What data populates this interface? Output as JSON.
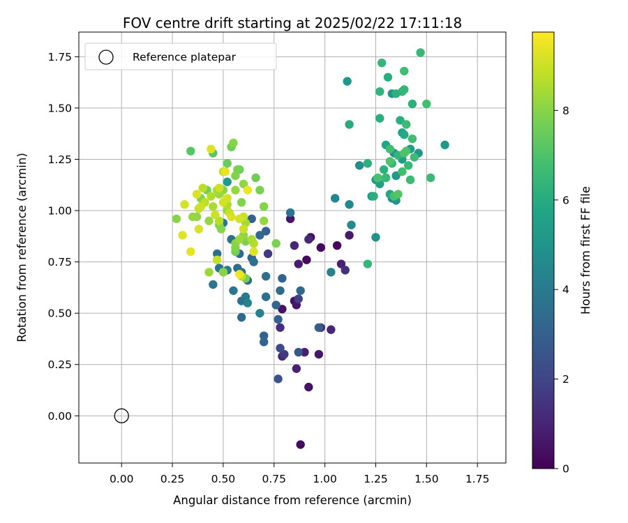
{
  "chart_data": {
    "type": "scatter",
    "title": "FOV centre drift starting at 2025/02/22 17:11:18",
    "xlabel": "Angular distance from reference (arcmin)",
    "ylabel": "Rotation from reference (arcmin)",
    "xlim": [
      -0.21,
      1.89
    ],
    "ylim": [
      -0.23,
      1.87
    ],
    "xticks": [
      0.0,
      0.25,
      0.5,
      0.75,
      1.0,
      1.25,
      1.5,
      1.75
    ],
    "xtick_labels": [
      "0.00",
      "0.25",
      "0.50",
      "0.75",
      "1.00",
      "1.25",
      "1.50",
      "1.75"
    ],
    "yticks": [
      0.0,
      0.25,
      0.5,
      0.75,
      1.0,
      1.25,
      1.5,
      1.75
    ],
    "ytick_labels": [
      "0.00",
      "0.25",
      "0.50",
      "0.75",
      "1.00",
      "1.25",
      "1.50",
      "1.75"
    ],
    "grid": true,
    "colormap": "viridis",
    "legend": {
      "placement": "top-left",
      "entries": [
        {
          "label": "Reference platepar",
          "marker": "open-circle"
        }
      ]
    },
    "reference_point": {
      "x": 0.0,
      "y": 0.0
    },
    "colorbar": {
      "label": "Hours from first FF file",
      "range": [
        0,
        9.75
      ],
      "ticks": [
        0,
        2,
        4,
        6,
        8
      ],
      "tick_labels": [
        "0",
        "2",
        "4",
        "6",
        "8"
      ]
    },
    "points": [
      {
        "x": 0.88,
        "y": -0.14,
        "h": 0.3
      },
      {
        "x": 0.92,
        "y": 0.14,
        "h": 0.5
      },
      {
        "x": 0.86,
        "y": 0.23,
        "h": 0.9
      },
      {
        "x": 0.9,
        "y": 0.31,
        "h": 0.8
      },
      {
        "x": 0.97,
        "y": 0.3,
        "h": 0.6
      },
      {
        "x": 0.79,
        "y": 0.29,
        "h": 1.0
      },
      {
        "x": 0.8,
        "y": 0.3,
        "h": 1.6
      },
      {
        "x": 0.78,
        "y": 0.33,
        "h": 2.2
      },
      {
        "x": 0.77,
        "y": 0.18,
        "h": 2.5
      },
      {
        "x": 0.87,
        "y": 0.31,
        "h": 2.6
      },
      {
        "x": 0.78,
        "y": 0.43,
        "h": 1.3
      },
      {
        "x": 0.79,
        "y": 0.52,
        "h": 0.5
      },
      {
        "x": 0.86,
        "y": 0.54,
        "h": 0.6
      },
      {
        "x": 0.85,
        "y": 0.56,
        "h": 0.4
      },
      {
        "x": 0.87,
        "y": 0.57,
        "h": 1.8
      },
      {
        "x": 0.98,
        "y": 0.43,
        "h": 1.2
      },
      {
        "x": 1.03,
        "y": 0.42,
        "h": 1.0
      },
      {
        "x": 0.97,
        "y": 0.43,
        "h": 2.9
      },
      {
        "x": 0.91,
        "y": 0.76,
        "h": 0.2
      },
      {
        "x": 0.87,
        "y": 0.74,
        "h": 0.8
      },
      {
        "x": 0.98,
        "y": 0.82,
        "h": 0.3
      },
      {
        "x": 0.92,
        "y": 0.86,
        "h": 1.1
      },
      {
        "x": 0.93,
        "y": 0.87,
        "h": 0.4
      },
      {
        "x": 0.85,
        "y": 0.83,
        "h": 1.0
      },
      {
        "x": 0.83,
        "y": 0.96,
        "h": 0.6
      },
      {
        "x": 1.06,
        "y": 0.83,
        "h": 0.2
      },
      {
        "x": 1.08,
        "y": 0.74,
        "h": 0.9
      },
      {
        "x": 1.1,
        "y": 0.71,
        "h": 1.3
      },
      {
        "x": 1.12,
        "y": 0.88,
        "h": 0.7
      },
      {
        "x": 1.03,
        "y": 0.7,
        "h": 4.3
      },
      {
        "x": 0.76,
        "y": 0.54,
        "h": 3.2
      },
      {
        "x": 0.77,
        "y": 0.47,
        "h": 3.0
      },
      {
        "x": 0.78,
        "y": 0.61,
        "h": 3.4
      },
      {
        "x": 0.79,
        "y": 0.67,
        "h": 3.1
      },
      {
        "x": 0.88,
        "y": 0.61,
        "h": 3.3
      },
      {
        "x": 0.7,
        "y": 0.39,
        "h": 3.0
      },
      {
        "x": 0.7,
        "y": 0.36,
        "h": 3.2
      },
      {
        "x": 0.71,
        "y": 0.58,
        "h": 3.6
      },
      {
        "x": 0.71,
        "y": 0.68,
        "h": 3.5
      },
      {
        "x": 0.68,
        "y": 0.5,
        "h": 4.2
      },
      {
        "x": 0.62,
        "y": 0.55,
        "h": 4.3
      },
      {
        "x": 0.61,
        "y": 0.58,
        "h": 3.9
      },
      {
        "x": 0.59,
        "y": 0.56,
        "h": 3.5
      },
      {
        "x": 0.59,
        "y": 0.48,
        "h": 3.4
      },
      {
        "x": 0.55,
        "y": 0.61,
        "h": 3.8
      },
      {
        "x": 0.62,
        "y": 0.66,
        "h": 3.3
      },
      {
        "x": 0.59,
        "y": 0.7,
        "h": 3.6
      },
      {
        "x": 0.57,
        "y": 0.72,
        "h": 3.4
      },
      {
        "x": 0.52,
        "y": 0.71,
        "h": 4.0
      },
      {
        "x": 0.48,
        "y": 0.72,
        "h": 3.7
      },
      {
        "x": 0.45,
        "y": 0.64,
        "h": 3.8
      },
      {
        "x": 0.47,
        "y": 0.79,
        "h": 3.5
      },
      {
        "x": 0.54,
        "y": 0.86,
        "h": 3.6
      },
      {
        "x": 0.58,
        "y": 0.79,
        "h": 3.4
      },
      {
        "x": 0.64,
        "y": 0.77,
        "h": 3.2
      },
      {
        "x": 0.65,
        "y": 0.75,
        "h": 3.5
      },
      {
        "x": 0.72,
        "y": 0.79,
        "h": 1.6
      },
      {
        "x": 0.68,
        "y": 0.88,
        "h": 3.3
      },
      {
        "x": 0.71,
        "y": 0.9,
        "h": 3.0
      },
      {
        "x": 0.64,
        "y": 0.96,
        "h": 3.1
      },
      {
        "x": 0.83,
        "y": 0.99,
        "h": 3.7
      },
      {
        "x": 0.5,
        "y": 0.94,
        "h": 3.9
      },
      {
        "x": 0.52,
        "y": 1.14,
        "h": 5.3
      },
      {
        "x": 1.05,
        "y": 1.06,
        "h": 4.4
      },
      {
        "x": 1.12,
        "y": 1.03,
        "h": 4.5
      },
      {
        "x": 1.13,
        "y": 0.93,
        "h": 4.6
      },
      {
        "x": 1.17,
        "y": 1.22,
        "h": 4.8
      },
      {
        "x": 1.25,
        "y": 0.87,
        "h": 4.9
      },
      {
        "x": 1.21,
        "y": 0.74,
        "h": 6.4
      },
      {
        "x": 1.23,
        "y": 1.07,
        "h": 5.2
      },
      {
        "x": 1.25,
        "y": 1.15,
        "h": 5.3
      },
      {
        "x": 1.27,
        "y": 1.13,
        "h": 5.5
      },
      {
        "x": 1.3,
        "y": 1.16,
        "h": 5.6
      },
      {
        "x": 1.32,
        "y": 1.08,
        "h": 5.8
      },
      {
        "x": 1.35,
        "y": 1.05,
        "h": 5.1
      },
      {
        "x": 1.33,
        "y": 1.06,
        "h": 4.8
      },
      {
        "x": 1.35,
        "y": 1.17,
        "h": 5.2
      },
      {
        "x": 1.34,
        "y": 1.28,
        "h": 5.0
      },
      {
        "x": 1.38,
        "y": 1.25,
        "h": 5.4
      },
      {
        "x": 1.38,
        "y": 1.38,
        "h": 5.6
      },
      {
        "x": 1.42,
        "y": 1.3,
        "h": 5.3
      },
      {
        "x": 1.46,
        "y": 1.28,
        "h": 5.1
      },
      {
        "x": 1.3,
        "y": 1.32,
        "h": 5.7
      },
      {
        "x": 1.33,
        "y": 1.57,
        "h": 5.0
      },
      {
        "x": 1.59,
        "y": 1.32,
        "h": 5.2
      },
      {
        "x": 1.11,
        "y": 1.63,
        "h": 5.1
      },
      {
        "x": 1.12,
        "y": 1.42,
        "h": 6.0
      },
      {
        "x": 1.21,
        "y": 1.23,
        "h": 6.2
      },
      {
        "x": 1.24,
        "y": 1.07,
        "h": 6.1
      },
      {
        "x": 1.27,
        "y": 1.45,
        "h": 6.1
      },
      {
        "x": 1.27,
        "y": 1.58,
        "h": 6.3
      },
      {
        "x": 1.28,
        "y": 1.72,
        "h": 6.4
      },
      {
        "x": 1.31,
        "y": 1.65,
        "h": 6.1
      },
      {
        "x": 1.35,
        "y": 1.57,
        "h": 6.2
      },
      {
        "x": 1.38,
        "y": 1.58,
        "h": 6.3
      },
      {
        "x": 1.39,
        "y": 1.68,
        "h": 6.7
      },
      {
        "x": 1.39,
        "y": 1.59,
        "h": 6.4
      },
      {
        "x": 1.43,
        "y": 1.52,
        "h": 6.2
      },
      {
        "x": 1.47,
        "y": 1.77,
        "h": 6.5
      },
      {
        "x": 1.5,
        "y": 1.52,
        "h": 6.8
      },
      {
        "x": 1.4,
        "y": 1.42,
        "h": 6.6
      },
      {
        "x": 1.39,
        "y": 1.37,
        "h": 5.9
      },
      {
        "x": 1.37,
        "y": 1.44,
        "h": 6.1
      },
      {
        "x": 1.32,
        "y": 1.3,
        "h": 6.7
      },
      {
        "x": 1.33,
        "y": 1.23,
        "h": 6.3
      },
      {
        "x": 1.29,
        "y": 1.2,
        "h": 6.2
      },
      {
        "x": 1.3,
        "y": 1.16,
        "h": 6.5
      },
      {
        "x": 1.26,
        "y": 1.16,
        "h": 6.9
      },
      {
        "x": 1.41,
        "y": 1.22,
        "h": 6.5
      },
      {
        "x": 1.44,
        "y": 1.26,
        "h": 6.6
      },
      {
        "x": 1.43,
        "y": 1.35,
        "h": 6.8
      },
      {
        "x": 1.4,
        "y": 1.29,
        "h": 7.0
      },
      {
        "x": 1.36,
        "y": 1.27,
        "h": 6.4
      },
      {
        "x": 1.42,
        "y": 1.15,
        "h": 6.6
      },
      {
        "x": 1.38,
        "y": 1.19,
        "h": 6.8
      },
      {
        "x": 1.52,
        "y": 1.16,
        "h": 6.6
      },
      {
        "x": 1.36,
        "y": 1.08,
        "h": 7.1
      },
      {
        "x": 1.34,
        "y": 1.07,
        "h": 6.9
      },
      {
        "x": 1.32,
        "y": 1.24,
        "h": 7.0
      },
      {
        "x": 1.39,
        "y": 1.28,
        "h": 7.0
      },
      {
        "x": 0.34,
        "y": 1.29,
        "h": 7.2
      },
      {
        "x": 0.45,
        "y": 1.28,
        "h": 7.2
      },
      {
        "x": 0.52,
        "y": 1.23,
        "h": 7.5
      },
      {
        "x": 0.54,
        "y": 1.31,
        "h": 7.6
      },
      {
        "x": 0.55,
        "y": 1.33,
        "h": 8.0
      },
      {
        "x": 0.57,
        "y": 1.2,
        "h": 7.8
      },
      {
        "x": 0.58,
        "y": 1.2,
        "h": 7.5
      },
      {
        "x": 0.56,
        "y": 1.17,
        "h": 7.9
      },
      {
        "x": 0.66,
        "y": 1.16,
        "h": 7.6
      },
      {
        "x": 0.68,
        "y": 1.1,
        "h": 7.8
      },
      {
        "x": 0.6,
        "y": 1.13,
        "h": 8.1
      },
      {
        "x": 0.56,
        "y": 1.1,
        "h": 8.2
      },
      {
        "x": 0.7,
        "y": 1.02,
        "h": 7.9
      },
      {
        "x": 0.59,
        "y": 1.04,
        "h": 7.9
      },
      {
        "x": 0.52,
        "y": 1.0,
        "h": 8.2
      },
      {
        "x": 0.48,
        "y": 1.08,
        "h": 8.3
      },
      {
        "x": 0.5,
        "y": 1.1,
        "h": 8.0
      },
      {
        "x": 0.42,
        "y": 1.1,
        "h": 7.7
      },
      {
        "x": 0.39,
        "y": 1.06,
        "h": 7.9
      },
      {
        "x": 0.35,
        "y": 0.97,
        "h": 8.2
      },
      {
        "x": 0.37,
        "y": 0.97,
        "h": 8.1
      },
      {
        "x": 0.43,
        "y": 0.95,
        "h": 8.2
      },
      {
        "x": 0.48,
        "y": 0.93,
        "h": 7.9
      },
      {
        "x": 0.49,
        "y": 0.91,
        "h": 8.0
      },
      {
        "x": 0.6,
        "y": 0.88,
        "h": 8.1
      },
      {
        "x": 0.61,
        "y": 0.85,
        "h": 7.8
      },
      {
        "x": 0.58,
        "y": 0.86,
        "h": 8.3
      },
      {
        "x": 0.56,
        "y": 0.84,
        "h": 8.0
      },
      {
        "x": 0.56,
        "y": 0.82,
        "h": 7.9
      },
      {
        "x": 0.56,
        "y": 0.8,
        "h": 7.7
      },
      {
        "x": 0.64,
        "y": 0.86,
        "h": 8.5
      },
      {
        "x": 0.65,
        "y": 0.84,
        "h": 8.6
      },
      {
        "x": 0.61,
        "y": 0.94,
        "h": 8.4
      },
      {
        "x": 0.7,
        "y": 0.95,
        "h": 8.2
      },
      {
        "x": 0.76,
        "y": 0.84,
        "h": 7.8
      },
      {
        "x": 0.5,
        "y": 0.7,
        "h": 8.0
      },
      {
        "x": 0.43,
        "y": 0.7,
        "h": 8.3
      },
      {
        "x": 0.61,
        "y": 0.67,
        "h": 7.7
      },
      {
        "x": 0.59,
        "y": 0.68,
        "h": 8.8
      },
      {
        "x": 0.47,
        "y": 0.76,
        "h": 8.9
      },
      {
        "x": 0.27,
        "y": 0.96,
        "h": 8.0
      },
      {
        "x": 0.31,
        "y": 1.03,
        "h": 9.1
      },
      {
        "x": 0.3,
        "y": 0.88,
        "h": 9.3
      },
      {
        "x": 0.34,
        "y": 0.8,
        "h": 9.4
      },
      {
        "x": 0.38,
        "y": 0.91,
        "h": 9.2
      },
      {
        "x": 0.38,
        "y": 1.01,
        "h": 8.9
      },
      {
        "x": 0.39,
        "y": 1.02,
        "h": 9.0
      },
      {
        "x": 0.4,
        "y": 1.11,
        "h": 8.7
      },
      {
        "x": 0.37,
        "y": 1.08,
        "h": 9.2
      },
      {
        "x": 0.44,
        "y": 1.07,
        "h": 8.6
      },
      {
        "x": 0.41,
        "y": 1.04,
        "h": 8.8
      },
      {
        "x": 0.46,
        "y": 0.98,
        "h": 9.0
      },
      {
        "x": 0.5,
        "y": 1.04,
        "h": 9.1
      },
      {
        "x": 0.52,
        "y": 1.03,
        "h": 8.6
      },
      {
        "x": 0.48,
        "y": 1.11,
        "h": 9.0
      },
      {
        "x": 0.47,
        "y": 1.1,
        "h": 8.4
      },
      {
        "x": 0.44,
        "y": 1.3,
        "h": 9.3
      },
      {
        "x": 0.5,
        "y": 1.19,
        "h": 8.8
      },
      {
        "x": 0.51,
        "y": 1.19,
        "h": 9.4
      },
      {
        "x": 0.62,
        "y": 1.1,
        "h": 9.5
      },
      {
        "x": 0.54,
        "y": 0.97,
        "h": 9.2
      },
      {
        "x": 0.58,
        "y": 0.96,
        "h": 9.1
      },
      {
        "x": 0.6,
        "y": 0.97,
        "h": 8.9
      },
      {
        "x": 0.6,
        "y": 0.91,
        "h": 9.0
      },
      {
        "x": 0.65,
        "y": 0.8,
        "h": 9.3
      },
      {
        "x": 0.58,
        "y": 0.69,
        "h": 9.5
      },
      {
        "x": 0.48,
        "y": 0.95,
        "h": 8.7
      },
      {
        "x": 0.53,
        "y": 0.99,
        "h": 8.9
      },
      {
        "x": 0.45,
        "y": 1.02,
        "h": 8.5
      },
      {
        "x": 0.52,
        "y": 1.06,
        "h": 9.1
      }
    ]
  }
}
